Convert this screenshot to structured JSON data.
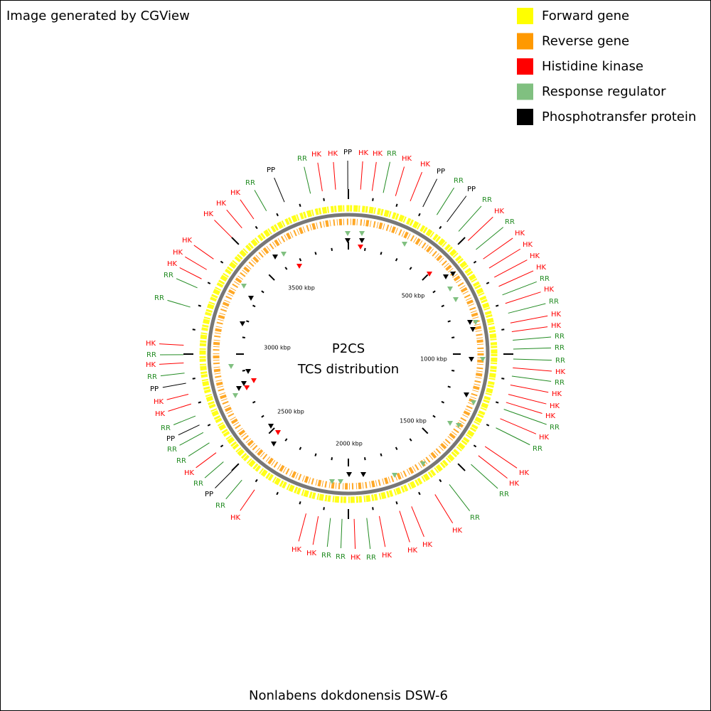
{
  "header": {
    "credit": "Image generated by CGView"
  },
  "legend": [
    {
      "label": "Forward gene",
      "color": "#ffff00"
    },
    {
      "label": "Reverse gene",
      "color": "#ff9900"
    },
    {
      "label": "Histidine kinase",
      "color": "#ff0000"
    },
    {
      "label": "Response regulator",
      "color": "#80c080"
    },
    {
      "label": "Phosphotransfer protein",
      "color": "#000000"
    }
  ],
  "map": {
    "title": "P2CS",
    "subtitle": "TCS distribution",
    "ticks": [
      "500 kbp",
      "1000 kbp",
      "1500 kbp",
      "2000 kbp",
      "2500 kbp",
      "3000 kbp",
      "3500 kbp"
    ],
    "features": [
      "RR",
      "HK",
      "HK",
      "PP",
      "HK",
      "HK",
      "RR",
      "HK",
      "HK",
      "PP",
      "RR",
      "PP",
      "RR",
      "HK",
      "RR",
      "HK",
      "HK",
      "HK",
      "HK",
      "RR",
      "HK",
      "RR",
      "HK",
      "HK",
      "RR",
      "RR",
      "RR",
      "HK",
      "RR",
      "HK",
      "HK",
      "HK",
      "RR",
      "HK",
      "RR",
      "HK",
      "HK",
      "RR",
      "RR",
      "HK",
      "HK",
      "HK",
      "HK",
      "RR",
      "HK",
      "RR",
      "RR",
      "HK",
      "HK",
      "HK",
      "RR",
      "PP",
      "RR",
      "HK",
      "RR",
      "RR",
      "PP",
      "RR",
      "HK",
      "HK",
      "PP",
      "RR",
      "HK",
      "RR",
      "HK",
      "RR",
      "RR",
      "HK",
      "HK",
      "HK",
      "HK",
      "HK",
      "HK",
      "RR",
      "PP"
    ]
  },
  "footer": {
    "organism": "Nonlabens dokdonensis DSW-6"
  }
}
